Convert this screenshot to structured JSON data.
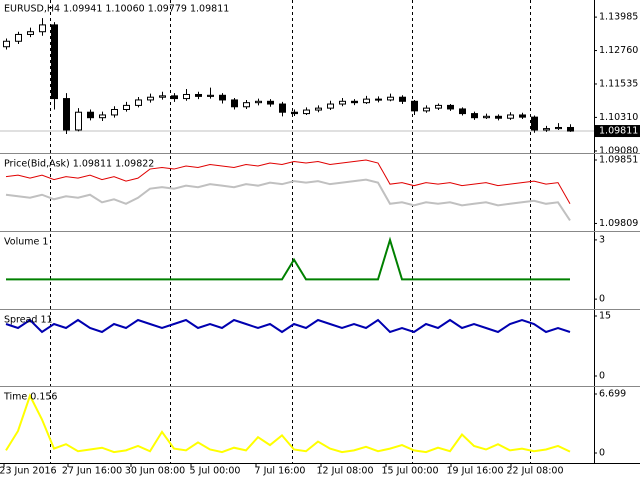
{
  "chart_data": [
    {
      "type": "candlestick",
      "title": "EURUSD,H4  1.09941 1.10060 1.09779 1.09811",
      "open": [
        1.129,
        1.131,
        1.1335,
        1.1345,
        1.137,
        1.11,
        1.0985,
        1.105,
        1.103,
        1.104,
        1.106,
        1.1075,
        1.1095,
        1.1105,
        1.111,
        1.11,
        1.1115,
        1.1108,
        1.1112,
        1.1095,
        1.107,
        1.1085,
        1.109,
        1.108,
        1.105,
        1.1045,
        1.1058,
        1.1065,
        1.108,
        1.109,
        1.1085,
        1.1098,
        1.1095,
        1.1105,
        1.109,
        1.1055,
        1.1065,
        1.1075,
        1.1062,
        1.1045,
        1.103,
        1.1035,
        1.1028,
        1.104,
        1.1032,
        1.0985,
        1.099,
        1.09941
      ],
      "high": [
        1.132,
        1.1345,
        1.136,
        1.1395,
        1.138,
        1.112,
        1.1065,
        1.106,
        1.1052,
        1.1072,
        1.1088,
        1.1106,
        1.1118,
        1.1125,
        1.112,
        1.1135,
        1.1125,
        1.114,
        1.112,
        1.1102,
        1.1095,
        1.11,
        1.1098,
        1.1088,
        1.106,
        1.1068,
        1.1075,
        1.1092,
        1.1102,
        1.1098,
        1.111,
        1.1108,
        1.1118,
        1.1112,
        1.1095,
        1.1075,
        1.1082,
        1.108,
        1.1068,
        1.1052,
        1.1045,
        1.1042,
        1.105,
        1.1048,
        1.1038,
        1.1,
        1.101,
        1.1006
      ],
      "low": [
        1.128,
        1.13,
        1.1325,
        1.133,
        1.106,
        1.097,
        1.098,
        1.102,
        1.1018,
        1.103,
        1.1052,
        1.1068,
        1.1085,
        1.1096,
        1.1088,
        1.1092,
        1.1098,
        1.11,
        1.1082,
        1.106,
        1.1062,
        1.1075,
        1.107,
        1.1035,
        1.1036,
        1.104,
        1.105,
        1.1058,
        1.1072,
        1.1076,
        1.108,
        1.1086,
        1.109,
        1.108,
        1.104,
        1.1048,
        1.1058,
        1.1055,
        1.1038,
        1.1022,
        1.1025,
        1.102,
        1.1022,
        1.1025,
        1.0975,
        1.0978,
        1.0985,
        1.09779
      ],
      "close": [
        1.131,
        1.1335,
        1.1345,
        1.137,
        1.11,
        1.0985,
        1.105,
        1.103,
        1.104,
        1.106,
        1.1075,
        1.1095,
        1.1105,
        1.111,
        1.11,
        1.1115,
        1.1108,
        1.1112,
        1.1095,
        1.107,
        1.1085,
        1.109,
        1.108,
        1.105,
        1.1045,
        1.1058,
        1.1065,
        1.108,
        1.109,
        1.1085,
        1.1098,
        1.1095,
        1.1105,
        1.109,
        1.1055,
        1.1065,
        1.1075,
        1.1062,
        1.1045,
        1.103,
        1.1035,
        1.1028,
        1.104,
        1.1032,
        1.0985,
        1.099,
        1.09941,
        1.09811
      ],
      "last_price": 1.09811,
      "ylim": [
        1.09006,
        1.14612
      ],
      "yticks": [
        1.13985,
        {
          "value": 1.1276,
          "label": "1.12760"
        },
        1.11535,
        {
          "value": 1.1031,
          "label": "1.10310"
        },
        {
          "value": 1.0908,
          "label": "1.09080"
        }
      ]
    },
    {
      "type": "line",
      "title": "Price(Bid,Ask) 1.09811 1.09822",
      "series": [
        {
          "color": "#e00000",
          "values": [
            1.0984,
            1.09841,
            1.09839,
            1.09841,
            1.09838,
            1.0984,
            1.09839,
            1.09841,
            1.09838,
            1.0984,
            1.09837,
            1.09839,
            1.09845,
            1.09846,
            1.09845,
            1.09847,
            1.09846,
            1.09848,
            1.09847,
            1.09846,
            1.09848,
            1.09847,
            1.09849,
            1.09848,
            1.0985,
            1.09849,
            1.0985,
            1.09848,
            1.09849,
            1.0985,
            1.09851,
            1.09849,
            1.09835,
            1.09836,
            1.09834,
            1.09836,
            1.09835,
            1.09836,
            1.09834,
            1.09835,
            1.09836,
            1.09834,
            1.09835,
            1.09836,
            1.09837,
            1.09835,
            1.09836,
            1.09822
          ]
        },
        {
          "color": "#c0c0c0",
          "values": [
            1.09828,
            1.09827,
            1.09826,
            1.09828,
            1.09825,
            1.09827,
            1.09826,
            1.09828,
            1.09823,
            1.09825,
            1.09822,
            1.09826,
            1.09832,
            1.09833,
            1.09832,
            1.09834,
            1.09833,
            1.09835,
            1.09834,
            1.09833,
            1.09835,
            1.09834,
            1.09836,
            1.09835,
            1.09837,
            1.09836,
            1.09837,
            1.09835,
            1.09836,
            1.09837,
            1.09838,
            1.09836,
            1.09822,
            1.09823,
            1.09821,
            1.09823,
            1.09822,
            1.09823,
            1.09821,
            1.09822,
            1.09823,
            1.09821,
            1.09822,
            1.09823,
            1.09824,
            1.09822,
            1.09823,
            1.09811
          ]
        }
      ],
      "ylim": [
        1.09804,
        1.098543
      ],
      "yticks": [
        1.09851,
        1.09809
      ]
    },
    {
      "type": "line",
      "title": "Volume 1",
      "series": [
        {
          "color": "#008000",
          "values": [
            1,
            1,
            1,
            1,
            1,
            1,
            1,
            1,
            1,
            1,
            1,
            1,
            1,
            1,
            1,
            1,
            1,
            1,
            1,
            1,
            1,
            1,
            1,
            1,
            2,
            1,
            1,
            1,
            1,
            1,
            1,
            1,
            3,
            1,
            1,
            1,
            1,
            1,
            1,
            1,
            1,
            1,
            1,
            1,
            1,
            1,
            1,
            1
          ]
        }
      ],
      "ylim": [
        -0.5,
        3.35
      ],
      "yticks": [
        3,
        0
      ]
    },
    {
      "type": "line",
      "title": "Spread 11",
      "series": [
        {
          "color": "#0000b0",
          "values": [
            13,
            12,
            14,
            11,
            13,
            12,
            14,
            12,
            11,
            13,
            12,
            14,
            13,
            12,
            13,
            14,
            12,
            13,
            12,
            14,
            13,
            12,
            13,
            11,
            13,
            12,
            14,
            13,
            12,
            13,
            12,
            14,
            11,
            12,
            11,
            13,
            12,
            14,
            12,
            13,
            12,
            11,
            13,
            14,
            13,
            11,
            12,
            11
          ]
        }
      ],
      "ylim": [
        -2.5,
        16.25
      ],
      "yticks": [
        15,
        0
      ]
    },
    {
      "type": "line",
      "title": "Time 0.156",
      "series": [
        {
          "color": "#ffff00",
          "values": [
            0.3,
            2.5,
            6.5,
            3.8,
            0.5,
            1.0,
            0.2,
            0.4,
            0.6,
            0.1,
            0.3,
            0.8,
            0.2,
            2.4,
            0.5,
            0.3,
            1.2,
            0.4,
            0.1,
            0.6,
            0.3,
            1.8,
            0.9,
            2.0,
            0.4,
            0.2,
            1.3,
            0.5,
            0.1,
            0.3,
            0.7,
            0.2,
            0.5,
            0.9,
            0.3,
            0.1,
            0.6,
            0.2,
            2.1,
            0.8,
            0.4,
            1.0,
            0.3,
            0.5,
            0.2,
            0.4,
            0.8,
            0.156
          ]
        }
      ],
      "ylim": [
        -1.135,
        7.38
      ],
      "yticks": [
        6.699,
        0
      ]
    }
  ],
  "x_labels": [
    "23 Jun 2016",
    "27 Jun 16:00",
    "30 Jun 08:00",
    "5 Jul 00:00",
    "7 Jul 16:00",
    "12 Jul 08:00",
    "15 Jul 00:00",
    "19 Jul 16:00",
    "22 Jul 08:00"
  ]
}
